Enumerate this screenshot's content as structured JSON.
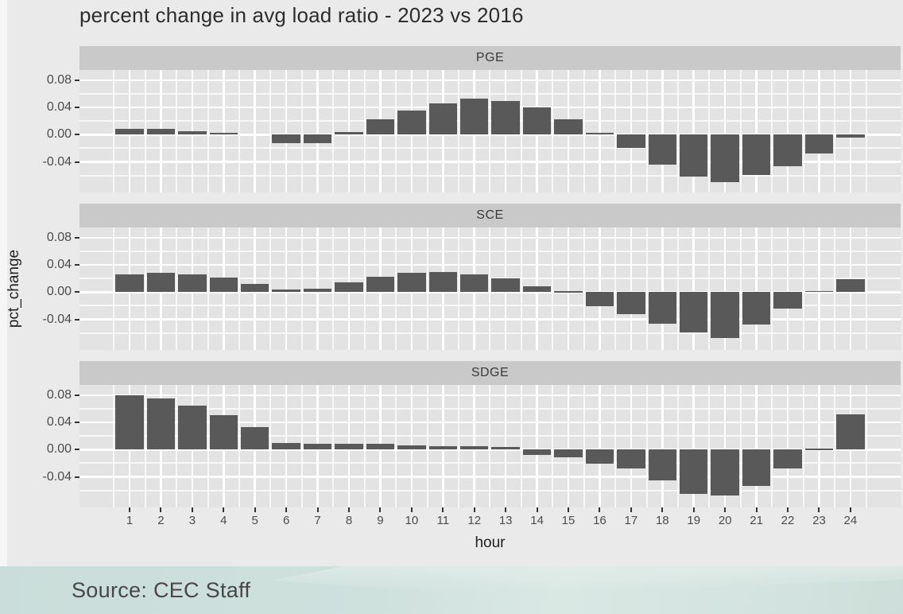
{
  "title": "percent change in avg load ratio - 2023 vs 2016",
  "source": {
    "label": "Source: CEC Staff"
  },
  "chart_data": {
    "type": "bar",
    "title": "percent change in avg load ratio - 2023 vs 2016",
    "xlabel": "hour",
    "ylabel": "pct_change",
    "legend": "none",
    "grid": {
      "major": "white",
      "minor": "white",
      "panel_background": "gray"
    },
    "x": [
      1,
      2,
      3,
      4,
      5,
      6,
      7,
      8,
      9,
      10,
      11,
      12,
      13,
      14,
      15,
      16,
      17,
      18,
      19,
      20,
      21,
      22,
      23,
      24
    ],
    "xtick_labels": [
      "1",
      "2",
      "3",
      "4",
      "5",
      "6",
      "7",
      "8",
      "9",
      "10",
      "11",
      "12",
      "13",
      "14",
      "15",
      "16",
      "17",
      "18",
      "19",
      "20",
      "21",
      "22",
      "23",
      "24"
    ],
    "yticks": [
      0.08,
      0.04,
      0.0,
      -0.04
    ],
    "ytick_labels": [
      "0.08",
      "0.04",
      "0.00",
      "-0.04"
    ],
    "yticks_minor": [
      0.06,
      0.02,
      -0.02,
      -0.06
    ],
    "ylim": [
      -0.085,
      0.095
    ],
    "facets": [
      {
        "name": "PGE",
        "values": [
          0.008,
          0.008,
          0.005,
          0.003,
          0.0,
          -0.013,
          -0.013,
          0.004,
          0.022,
          0.035,
          0.046,
          0.053,
          0.05,
          0.04,
          0.023,
          0.003,
          -0.019,
          -0.044,
          -0.062,
          -0.07,
          -0.059,
          -0.046,
          -0.028,
          -0.004
        ]
      },
      {
        "name": "SCE",
        "values": [
          0.026,
          0.028,
          0.026,
          0.021,
          0.012,
          0.004,
          0.005,
          0.014,
          0.023,
          0.028,
          0.03,
          0.026,
          0.02,
          0.009,
          0.001,
          -0.021,
          -0.033,
          -0.047,
          -0.059,
          -0.067,
          -0.048,
          -0.024,
          0.002,
          0.019
        ]
      },
      {
        "name": "SDGE",
        "values": [
          0.08,
          0.075,
          0.065,
          0.051,
          0.033,
          0.01,
          0.008,
          0.009,
          0.008,
          0.006,
          0.005,
          0.005,
          0.004,
          -0.008,
          -0.011,
          -0.021,
          -0.028,
          -0.045,
          -0.065,
          -0.068,
          -0.054,
          -0.028,
          0.001,
          0.052
        ]
      }
    ]
  },
  "colors": {
    "background": "#eaeaea",
    "panel": "#e3e3e3",
    "strip": "#c9c9c9",
    "bar": "#595959",
    "grid": "#ffffff",
    "axis_text": "#4c4c4c",
    "footer_band": "#cfe1dd"
  }
}
